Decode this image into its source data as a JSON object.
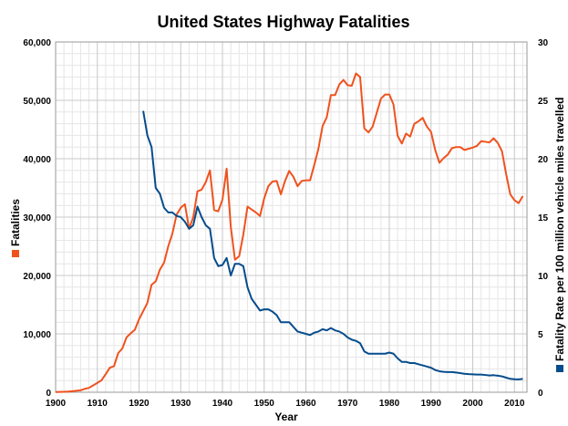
{
  "chart_data": {
    "type": "line",
    "title": "United States Highway Fatalities",
    "xlabel": "Year",
    "ylabel_left": "Fatalities",
    "ylabel_right": "Fatality Rate per 100 million vehicle miles travelled",
    "xlim": [
      1900,
      2013
    ],
    "ylim_left": [
      0,
      60000
    ],
    "ylim_right": [
      0,
      30
    ],
    "x_ticks": [
      1900,
      1910,
      1920,
      1930,
      1940,
      1950,
      1960,
      1970,
      1980,
      1990,
      2000,
      2010
    ],
    "y_left_ticks": [
      "0",
      "10,000",
      "20,000",
      "30,000",
      "40,000",
      "50,000",
      "60,000"
    ],
    "y_left_tick_values": [
      0,
      10000,
      20000,
      30000,
      40000,
      50000,
      60000
    ],
    "y_right_ticks": [
      "0",
      "5",
      "10",
      "15",
      "20",
      "25",
      "30"
    ],
    "y_right_tick_values": [
      0,
      5,
      10,
      15,
      20,
      25,
      30
    ],
    "grid": true,
    "colors": {
      "fatalities": "#f0521e",
      "rate": "#064c8c",
      "grid_major": "#c8c8c8",
      "grid_minor": "#e6e6e6"
    },
    "series": [
      {
        "axis": "left",
        "x": [
          1900,
          1901,
          1902,
          1903,
          1904,
          1905,
          1906,
          1907,
          1908,
          1909,
          1910,
          1911,
          1912,
          1913,
          1914,
          1915,
          1916,
          1917,
          1918,
          1919,
          1920,
          1921,
          1922,
          1923,
          1924,
          1925,
          1926,
          1927,
          1928,
          1929,
          1930,
          1931,
          1932,
          1933,
          1934,
          1935,
          1936,
          1937,
          1938,
          1939,
          1940,
          1941,
          1942,
          1943,
          1944,
          1945,
          1946,
          1947,
          1948,
          1949,
          1950,
          1951,
          1952,
          1953,
          1954,
          1955,
          1956,
          1957,
          1958,
          1959,
          1960,
          1961,
          1962,
          1963,
          1964,
          1965,
          1966,
          1967,
          1968,
          1969,
          1970,
          1971,
          1972,
          1973,
          1974,
          1975,
          1976,
          1977,
          1978,
          1979,
          1980,
          1981,
          1982,
          1983,
          1984,
          1985,
          1986,
          1987,
          1988,
          1989,
          1990,
          1991,
          1992,
          1993,
          1994,
          1995,
          1996,
          1997,
          1998,
          1999,
          2000,
          2001,
          2002,
          2003,
          2004,
          2005,
          2006,
          2007,
          2008,
          2009,
          2010,
          2011,
          2012
        ],
        "values": [
          36,
          54,
          79,
          117,
          172,
          252,
          338,
          581,
          751,
          1174,
          1599,
          2043,
          3090,
          4200,
          4468,
          6700,
          7500,
          9400,
          10100,
          10700,
          12500,
          13900,
          15300,
          18400,
          19000,
          21000,
          22200,
          25000,
          27200,
          30400,
          31600,
          32200,
          28000,
          30000,
          34400,
          34700,
          36000,
          38000,
          31200,
          31000,
          33000,
          38300,
          28300,
          22700,
          23300,
          27000,
          31800,
          31300,
          30800,
          30200,
          33200,
          35300,
          36100,
          36200,
          33900,
          36200,
          37900,
          36900,
          35300,
          36200,
          36300,
          36300,
          38900,
          41700,
          45600,
          47100,
          50900,
          50900,
          52700,
          53500,
          52600,
          52500,
          54600,
          54000,
          45200,
          44500,
          45500,
          47900,
          50300,
          51000,
          51000,
          49300,
          43900,
          42600,
          44300,
          43800,
          46000,
          46400,
          47000,
          45500,
          44600,
          41500,
          39300,
          40100,
          40700,
          41800,
          42000,
          42000,
          41500,
          41700,
          41900,
          42200,
          43000,
          42900,
          42800,
          43500,
          42700,
          41300,
          37400,
          33900,
          32900,
          32400,
          33600
        ]
      },
      {
        "axis": "right",
        "x": [
          1921,
          1922,
          1923,
          1924,
          1925,
          1926,
          1927,
          1928,
          1929,
          1930,
          1931,
          1932,
          1933,
          1934,
          1935,
          1936,
          1937,
          1938,
          1939,
          1940,
          1941,
          1942,
          1943,
          1944,
          1945,
          1946,
          1947,
          1948,
          1949,
          1950,
          1951,
          1952,
          1953,
          1954,
          1955,
          1956,
          1957,
          1958,
          1959,
          1960,
          1961,
          1962,
          1963,
          1964,
          1965,
          1966,
          1967,
          1968,
          1969,
          1970,
          1971,
          1972,
          1973,
          1974,
          1975,
          1976,
          1977,
          1978,
          1979,
          1980,
          1981,
          1982,
          1983,
          1984,
          1985,
          1986,
          1987,
          1988,
          1989,
          1990,
          1991,
          1992,
          1993,
          1994,
          1995,
          1996,
          1997,
          1998,
          1999,
          2000,
          2001,
          2002,
          2003,
          2004,
          2005,
          2006,
          2007,
          2008,
          2009,
          2010,
          2011,
          2012
        ],
        "values": [
          24.1,
          22.0,
          21.0,
          17.5,
          17.0,
          15.8,
          15.4,
          15.4,
          15.1,
          15.0,
          14.6,
          14.0,
          14.3,
          15.9,
          15.0,
          14.3,
          14.0,
          11.5,
          10.8,
          10.9,
          11.5,
          10.0,
          11.0,
          11.0,
          10.8,
          9.0,
          8.0,
          7.5,
          7.0,
          7.1,
          7.1,
          6.9,
          6.6,
          6.0,
          6.0,
          6.0,
          5.6,
          5.2,
          5.1,
          5.0,
          4.9,
          5.1,
          5.2,
          5.4,
          5.3,
          5.5,
          5.3,
          5.2,
          5.0,
          4.7,
          4.5,
          4.4,
          4.2,
          3.5,
          3.3,
          3.3,
          3.3,
          3.3,
          3.3,
          3.4,
          3.3,
          2.9,
          2.6,
          2.6,
          2.5,
          2.5,
          2.4,
          2.3,
          2.2,
          2.1,
          1.9,
          1.8,
          1.75,
          1.73,
          1.73,
          1.69,
          1.64,
          1.58,
          1.55,
          1.53,
          1.51,
          1.51,
          1.48,
          1.44,
          1.46,
          1.42,
          1.36,
          1.25,
          1.15,
          1.11,
          1.1,
          1.14
        ]
      }
    ]
  }
}
